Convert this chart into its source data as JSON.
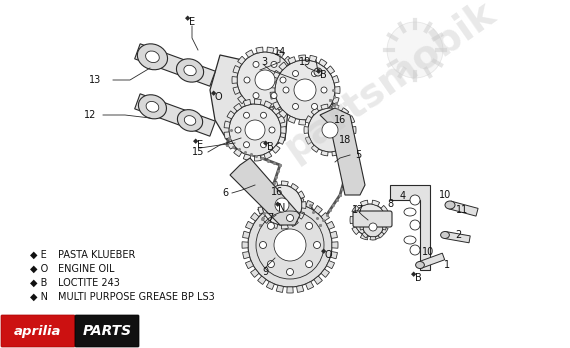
{
  "bg_color": "#ffffff",
  "fig_width": 5.7,
  "fig_height": 3.48,
  "dpi": 100,
  "gc": "#2a2a2a",
  "legend_items": [
    [
      "E",
      "PASTA KLUEBER"
    ],
    [
      "O",
      "ENGINE OIL"
    ],
    [
      "B",
      "LOCTITE 243"
    ],
    [
      "N",
      "MULTI PURPOSE GREASE BP LS3"
    ]
  ],
  "watermark_color": "#c8c8c8",
  "watermark_alpha": 0.4
}
